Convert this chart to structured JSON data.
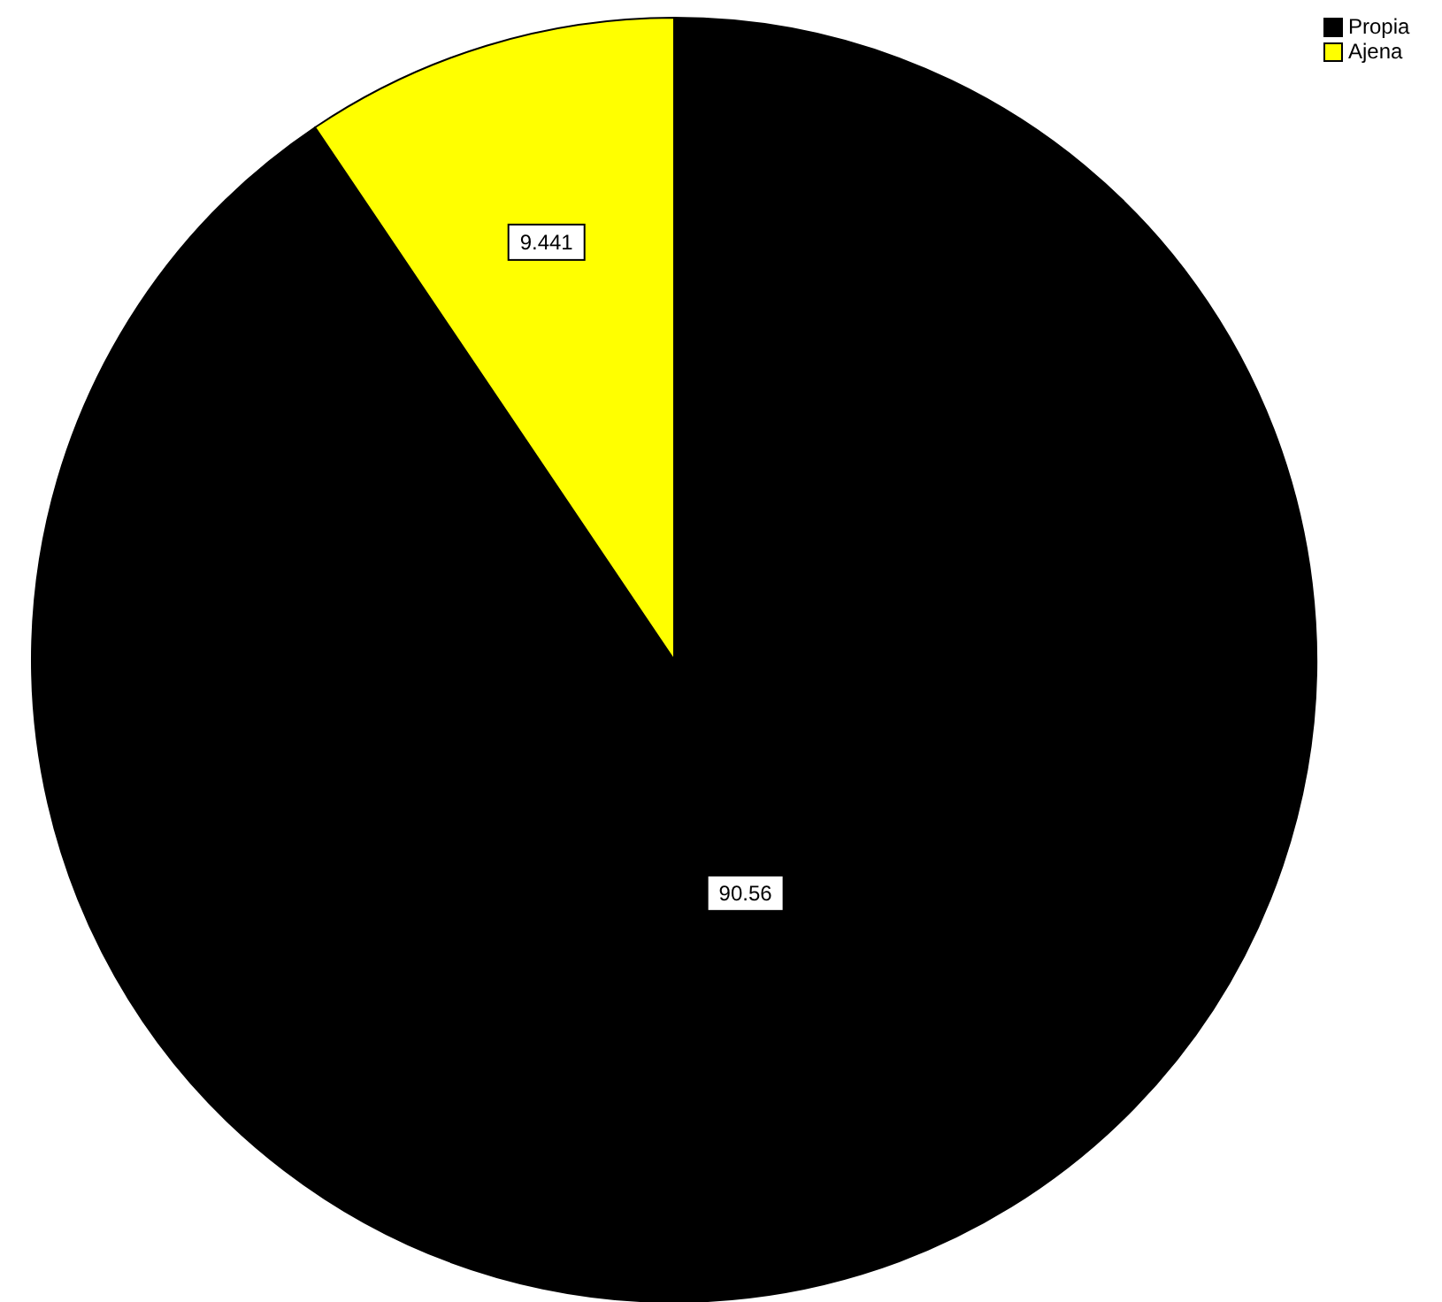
{
  "chart_data": {
    "type": "pie",
    "categories": [
      "Propia",
      "Ajena"
    ],
    "values": [
      90.56,
      9.441
    ],
    "colors": [
      "#000000",
      "#ffff00"
    ],
    "data_labels": true,
    "legend": "top right"
  }
}
